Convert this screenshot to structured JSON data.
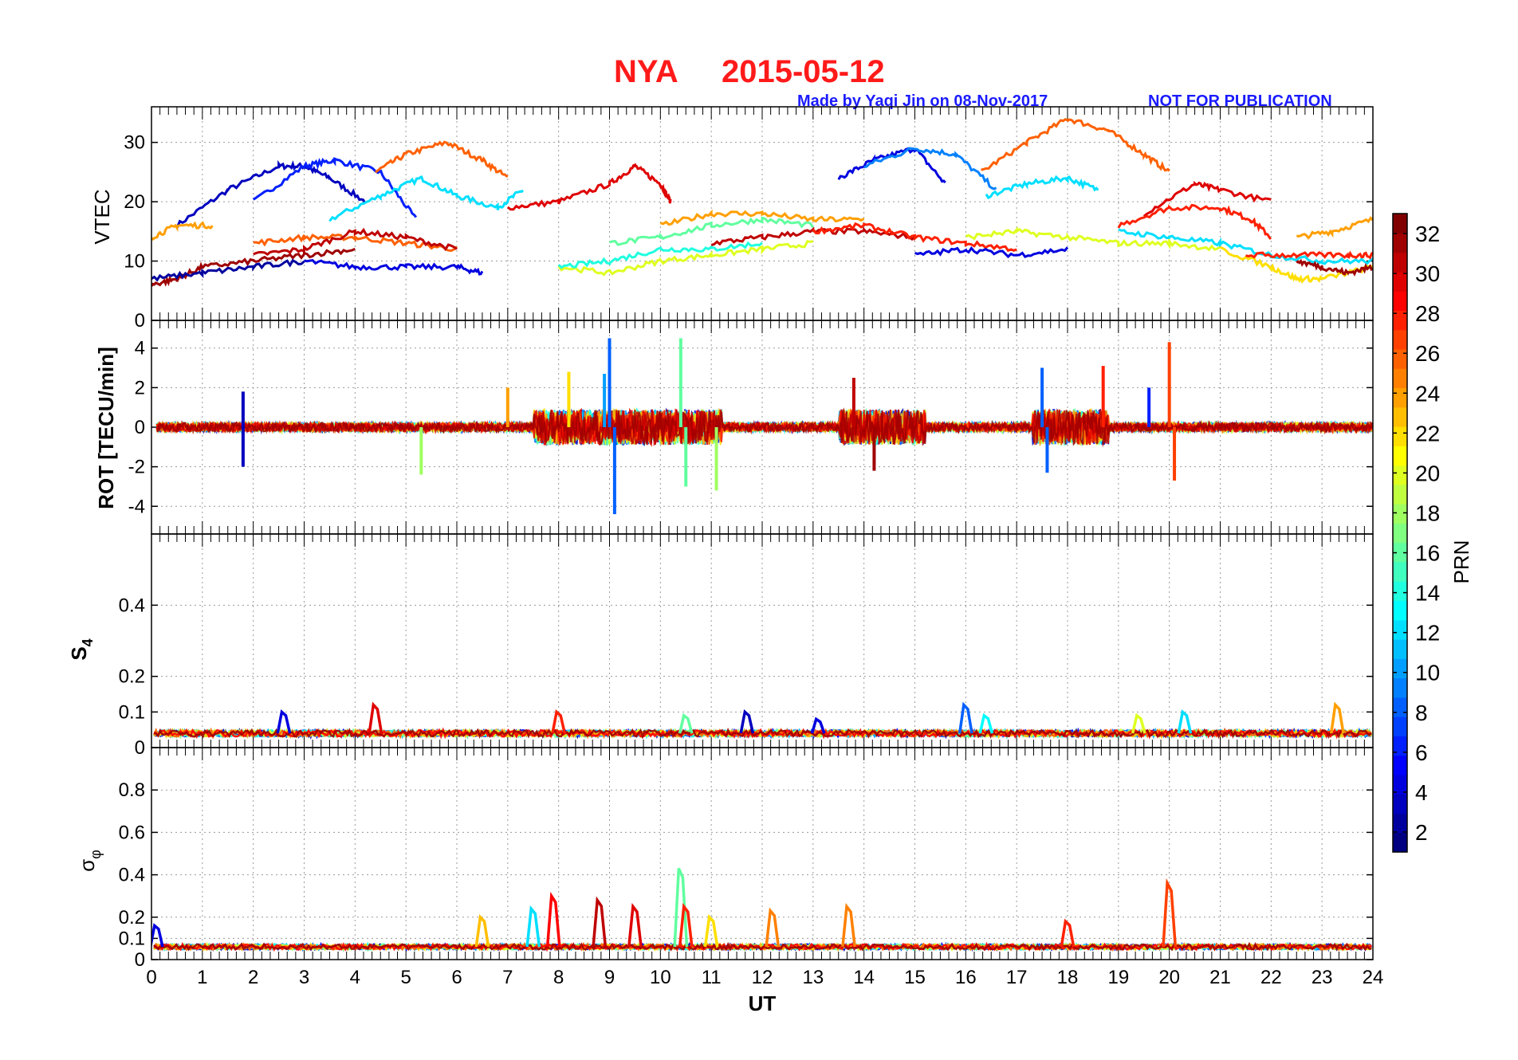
{
  "figure": {
    "title_station": "NYA",
    "title_date": "2015-05-12",
    "credit": "Made by Yaqi Jin on 08-Nov-2017",
    "notice": "NOT FOR PUBLICATION"
  },
  "chart_data": [
    {
      "type": "line",
      "panel": "VTEC",
      "ylabel": "VTEC",
      "ylim": [
        0,
        36
      ],
      "yticks": [
        "0",
        "10",
        "20",
        "30"
      ],
      "ytick_values": [
        0,
        10,
        20,
        30
      ],
      "xlim": [
        0,
        24
      ],
      "grid": true,
      "color_by": "PRN",
      "series": [
        {
          "prn": 3,
          "x": [
            0.5,
            1.5,
            2.5,
            3.0,
            3.5,
            4.2
          ],
          "y": [
            16,
            22,
            26,
            26,
            24,
            20
          ]
        },
        {
          "prn": 6,
          "x": [
            2.0,
            3.0,
            3.6,
            4.5,
            5.2
          ],
          "y": [
            20,
            26,
            27,
            25,
            17
          ]
        },
        {
          "prn": 12,
          "x": [
            3.5,
            4.5,
            5.3,
            6.0,
            6.8,
            7.3
          ],
          "y": [
            17,
            21,
            24,
            21,
            19,
            22
          ]
        },
        {
          "prn": 26,
          "x": [
            4.4,
            5.0,
            5.8,
            6.5,
            7.0
          ],
          "y": [
            25,
            28,
            30,
            27,
            24
          ]
        },
        {
          "prn": 30,
          "x": [
            7.0,
            8.0,
            9.0,
            9.5,
            10.0,
            10.2
          ],
          "y": [
            19,
            20,
            23,
            26,
            23,
            20
          ]
        },
        {
          "prn": 4,
          "x": [
            13.5,
            14.2,
            15.0,
            15.6
          ],
          "y": [
            24,
            27,
            29,
            23
          ]
        },
        {
          "prn": 9,
          "x": [
            14.0,
            15.0,
            15.8,
            16.6
          ],
          "y": [
            26,
            29,
            28,
            22
          ]
        },
        {
          "prn": 26,
          "x": [
            16.3,
            17.2,
            18.0,
            18.8,
            19.5,
            20.0
          ],
          "y": [
            25,
            30,
            34,
            32,
            28,
            25
          ]
        },
        {
          "prn": 12,
          "x": [
            16.4,
            17.2,
            18.0,
            18.6
          ],
          "y": [
            21,
            23,
            24,
            22
          ]
        },
        {
          "prn": 30,
          "x": [
            19.5,
            20.5,
            21.0,
            22.0
          ],
          "y": [
            18,
            23,
            22,
            20
          ]
        },
        {
          "prn": 28,
          "x": [
            19.0,
            20.0,
            21.0,
            21.6,
            22.0
          ],
          "y": [
            16,
            19,
            19,
            17,
            14
          ]
        },
        {
          "prn": 24,
          "x": [
            22.5,
            23.2,
            24.0
          ],
          "y": [
            14,
            15,
            17
          ]
        },
        {
          "prn": 24,
          "x": [
            0.0,
            0.5,
            1.2
          ],
          "y": [
            14,
            16,
            16
          ]
        },
        {
          "prn": 26,
          "x": [
            2.0,
            3.0,
            4.0,
            5.0,
            6.0
          ],
          "y": [
            13,
            14,
            14,
            13,
            12
          ]
        },
        {
          "prn": 31,
          "x": [
            2.0,
            3.0,
            4.0,
            5.0,
            6.0
          ],
          "y": [
            11,
            12,
            15,
            14,
            12
          ]
        },
        {
          "prn": 4,
          "x": [
            3.0,
            4.0,
            5.0,
            6.0,
            6.5
          ],
          "y": [
            10,
            9,
            9,
            9,
            8
          ]
        },
        {
          "prn": 32,
          "x": [
            0.0,
            0.5,
            1.0,
            2.0,
            3.0,
            4.0
          ],
          "y": [
            6,
            7,
            9,
            10,
            11,
            12
          ]
        },
        {
          "prn": 2,
          "x": [
            0.0,
            1.0,
            2.0,
            3.0
          ],
          "y": [
            7,
            8,
            9,
            10
          ]
        },
        {
          "prn": 20,
          "x": [
            8.0,
            9.0,
            10.0,
            11.0,
            12.0,
            13.0
          ],
          "y": [
            9,
            8,
            10,
            11,
            12,
            13
          ]
        },
        {
          "prn": 14,
          "x": [
            8.0,
            9.0,
            10.0,
            11.0,
            12.0
          ],
          "y": [
            9,
            10,
            12,
            12,
            13
          ]
        },
        {
          "prn": 16,
          "x": [
            9.0,
            10.0,
            11.0,
            12.0,
            13.0
          ],
          "y": [
            13,
            14,
            16,
            17,
            16
          ]
        },
        {
          "prn": 24,
          "x": [
            10.0,
            11.0,
            12.0,
            13.0,
            14.0
          ],
          "y": [
            16,
            18,
            18,
            17,
            17
          ]
        },
        {
          "prn": 31,
          "x": [
            11.0,
            12.0,
            13.0,
            14.0,
            15.0
          ],
          "y": [
            13,
            14,
            15,
            15,
            14
          ]
        },
        {
          "prn": 28,
          "x": [
            13.0,
            14.0,
            15.0,
            16.0,
            17.0
          ],
          "y": [
            15,
            16,
            14,
            13,
            12
          ]
        },
        {
          "prn": 4,
          "x": [
            15.0,
            16.0,
            17.0,
            18.0
          ],
          "y": [
            11,
            12,
            11,
            12
          ]
        },
        {
          "prn": 20,
          "x": [
            16.0,
            17.0,
            18.0,
            19.0,
            20.0,
            21.0
          ],
          "y": [
            14,
            15,
            14,
            13,
            13,
            12
          ]
        },
        {
          "prn": 12,
          "x": [
            19.0,
            20.0,
            21.0,
            22.0,
            23.0,
            24.0
          ],
          "y": [
            15,
            14,
            13,
            11,
            10,
            10
          ]
        },
        {
          "prn": 22,
          "x": [
            21.0,
            22.0,
            22.5,
            23.0,
            24.0
          ],
          "y": [
            12,
            9,
            7,
            7,
            9
          ]
        },
        {
          "prn": 28,
          "x": [
            21.5,
            22.5,
            23.5,
            24.0
          ],
          "y": [
            11,
            11,
            11,
            11
          ]
        },
        {
          "prn": 32,
          "x": [
            22.5,
            23.0,
            23.5,
            24.0
          ],
          "y": [
            10,
            9,
            8,
            9
          ]
        }
      ]
    },
    {
      "type": "line",
      "panel": "ROT",
      "ylabel": "ROT [TECU/min]",
      "ylim": [
        -5.4,
        5.4
      ],
      "yticks": [
        "-4",
        "-2",
        "0",
        "2",
        "4"
      ],
      "ytick_values": [
        -4,
        -2,
        0,
        2,
        4
      ],
      "xlim": [
        0,
        24
      ],
      "grid": true,
      "baseline": 0,
      "spikes": [
        {
          "x": 9.0,
          "y": 4.5,
          "prn": 8
        },
        {
          "x": 9.1,
          "y": -4.4,
          "prn": 8
        },
        {
          "x": 10.4,
          "y": 4.5,
          "prn": 16
        },
        {
          "x": 10.5,
          "y": -3.0,
          "prn": 16
        },
        {
          "x": 11.1,
          "y": -3.2,
          "prn": 18
        },
        {
          "x": 8.2,
          "y": 2.8,
          "prn": 22
        },
        {
          "x": 8.9,
          "y": 2.7,
          "prn": 10
        },
        {
          "x": 20.0,
          "y": 4.3,
          "prn": 27
        },
        {
          "x": 20.1,
          "y": -2.7,
          "prn": 27
        },
        {
          "x": 19.6,
          "y": 2.0,
          "prn": 6
        },
        {
          "x": 17.5,
          "y": 3.0,
          "prn": 8
        },
        {
          "x": 17.6,
          "y": -2.3,
          "prn": 8
        },
        {
          "x": 18.7,
          "y": 3.1,
          "prn": 28
        },
        {
          "x": 13.8,
          "y": 2.5,
          "prn": 31
        },
        {
          "x": 14.2,
          "y": -2.2,
          "prn": 32
        },
        {
          "x": 1.8,
          "y": 1.8,
          "prn": 3
        },
        {
          "x": 1.8,
          "y": -2.0,
          "prn": 3
        },
        {
          "x": 5.3,
          "y": -2.4,
          "prn": 18
        },
        {
          "x": 7.0,
          "y": 2.0,
          "prn": 24
        }
      ]
    },
    {
      "type": "line",
      "panel": "S4",
      "ylabel": "S4",
      "ylim": [
        0,
        0.6
      ],
      "yticks": [
        "0",
        "0.1",
        "0.2",
        "0.4"
      ],
      "ytick_values": [
        0,
        0.1,
        0.2,
        0.4
      ],
      "xlim": [
        0,
        24
      ],
      "grid": true,
      "baseline": 0.04,
      "bumps": [
        {
          "x": 2.6,
          "y": 0.1,
          "prn": 4
        },
        {
          "x": 4.4,
          "y": 0.12,
          "prn": 30
        },
        {
          "x": 8.0,
          "y": 0.1,
          "prn": 28
        },
        {
          "x": 11.7,
          "y": 0.1,
          "prn": 3
        },
        {
          "x": 16.0,
          "y": 0.12,
          "prn": 8
        },
        {
          "x": 16.4,
          "y": 0.09,
          "prn": 13
        },
        {
          "x": 20.3,
          "y": 0.1,
          "prn": 12
        },
        {
          "x": 19.4,
          "y": 0.09,
          "prn": 20
        },
        {
          "x": 23.3,
          "y": 0.12,
          "prn": 24
        },
        {
          "x": 10.5,
          "y": 0.09,
          "prn": 16
        },
        {
          "x": 13.1,
          "y": 0.08,
          "prn": 4
        }
      ]
    },
    {
      "type": "line",
      "panel": "sigma_phi",
      "ylabel": "σ",
      "ylabel_sub": "φ",
      "ylim": [
        0,
        1.0
      ],
      "yticks": [
        "0",
        "0.1",
        "0.2",
        "0.4",
        "0.6",
        "0.8"
      ],
      "ytick_values": [
        0,
        0.1,
        0.2,
        0.4,
        0.6,
        0.8
      ],
      "xlim": [
        0,
        24
      ],
      "xlabel": "UT",
      "xticks": [
        "0",
        "1",
        "2",
        "3",
        "4",
        "5",
        "6",
        "7",
        "8",
        "9",
        "10",
        "11",
        "12",
        "13",
        "14",
        "15",
        "16",
        "17",
        "18",
        "19",
        "20",
        "21",
        "22",
        "23",
        "24"
      ],
      "grid": true,
      "baseline": 0.06,
      "bumps": [
        {
          "x": 7.9,
          "y": 0.3,
          "prn": 29
        },
        {
          "x": 8.8,
          "y": 0.28,
          "prn": 31
        },
        {
          "x": 7.5,
          "y": 0.24,
          "prn": 12
        },
        {
          "x": 10.4,
          "y": 0.43,
          "prn": 16
        },
        {
          "x": 10.5,
          "y": 0.25,
          "prn": 28
        },
        {
          "x": 20.0,
          "y": 0.36,
          "prn": 27
        },
        {
          "x": 12.2,
          "y": 0.23,
          "prn": 25
        },
        {
          "x": 13.7,
          "y": 0.25,
          "prn": 25
        },
        {
          "x": 18.0,
          "y": 0.18,
          "prn": 28
        },
        {
          "x": 6.5,
          "y": 0.2,
          "prn": 23
        },
        {
          "x": 0.1,
          "y": 0.16,
          "prn": 4
        },
        {
          "x": 9.5,
          "y": 0.25,
          "prn": 30
        },
        {
          "x": 11.0,
          "y": 0.2,
          "prn": 22
        }
      ]
    }
  ],
  "colorbar": {
    "label": "PRN",
    "range": [
      1,
      33
    ],
    "ticks": [
      "2",
      "4",
      "6",
      "8",
      "10",
      "12",
      "14",
      "16",
      "18",
      "20",
      "22",
      "24",
      "26",
      "28",
      "30",
      "32"
    ],
    "tick_values": [
      2,
      4,
      6,
      8,
      10,
      12,
      14,
      16,
      18,
      20,
      22,
      24,
      26,
      28,
      30,
      32
    ],
    "colormap": "jet"
  }
}
